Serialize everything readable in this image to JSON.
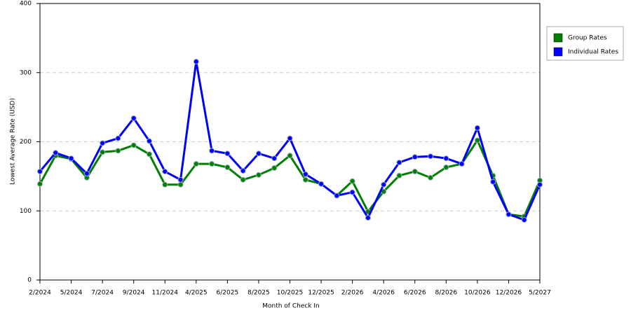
{
  "chart_data": {
    "type": "line",
    "x_label": "Month of Check In",
    "y_label": "Lowest Average Rate (USD)",
    "categories": [
      "2/2024",
      null,
      "5/2024",
      null,
      "7/2024",
      null,
      "9/2024",
      null,
      "11/2024",
      null,
      "4/2025",
      null,
      "6/2025",
      null,
      "8/2025",
      null,
      "10/2025",
      null,
      "12/2025",
      null,
      "2/2026",
      null,
      "4/2026",
      null,
      "6/2026",
      null,
      "8/2026",
      null,
      "10/2026",
      null,
      "12/2026",
      null,
      "5/2027"
    ],
    "series": [
      {
        "name": "Group Rates",
        "color": "#008000",
        "values": [
          139,
          180,
          175,
          148,
          185,
          187,
          195,
          182,
          138,
          138,
          168,
          168,
          163,
          145,
          152,
          162,
          180,
          145,
          139,
          122,
          143,
          99,
          128,
          151,
          157,
          148,
          163,
          168,
          202,
          151,
          95,
          92,
          144
        ]
      },
      {
        "name": "Individual Rates",
        "color": "#0000ff",
        "values": [
          157,
          184,
          176,
          154,
          198,
          205,
          234,
          201,
          157,
          145,
          316,
          187,
          183,
          158,
          183,
          176,
          205,
          153,
          139,
          122,
          127,
          90,
          138,
          170,
          178,
          179,
          176,
          168,
          220,
          142,
          95,
          87,
          138
        ]
      }
    ],
    "ylim": [
      0,
      400
    ],
    "yticks": [
      0,
      100,
      200,
      300,
      400
    ],
    "grid": true,
    "legend": "right"
  }
}
